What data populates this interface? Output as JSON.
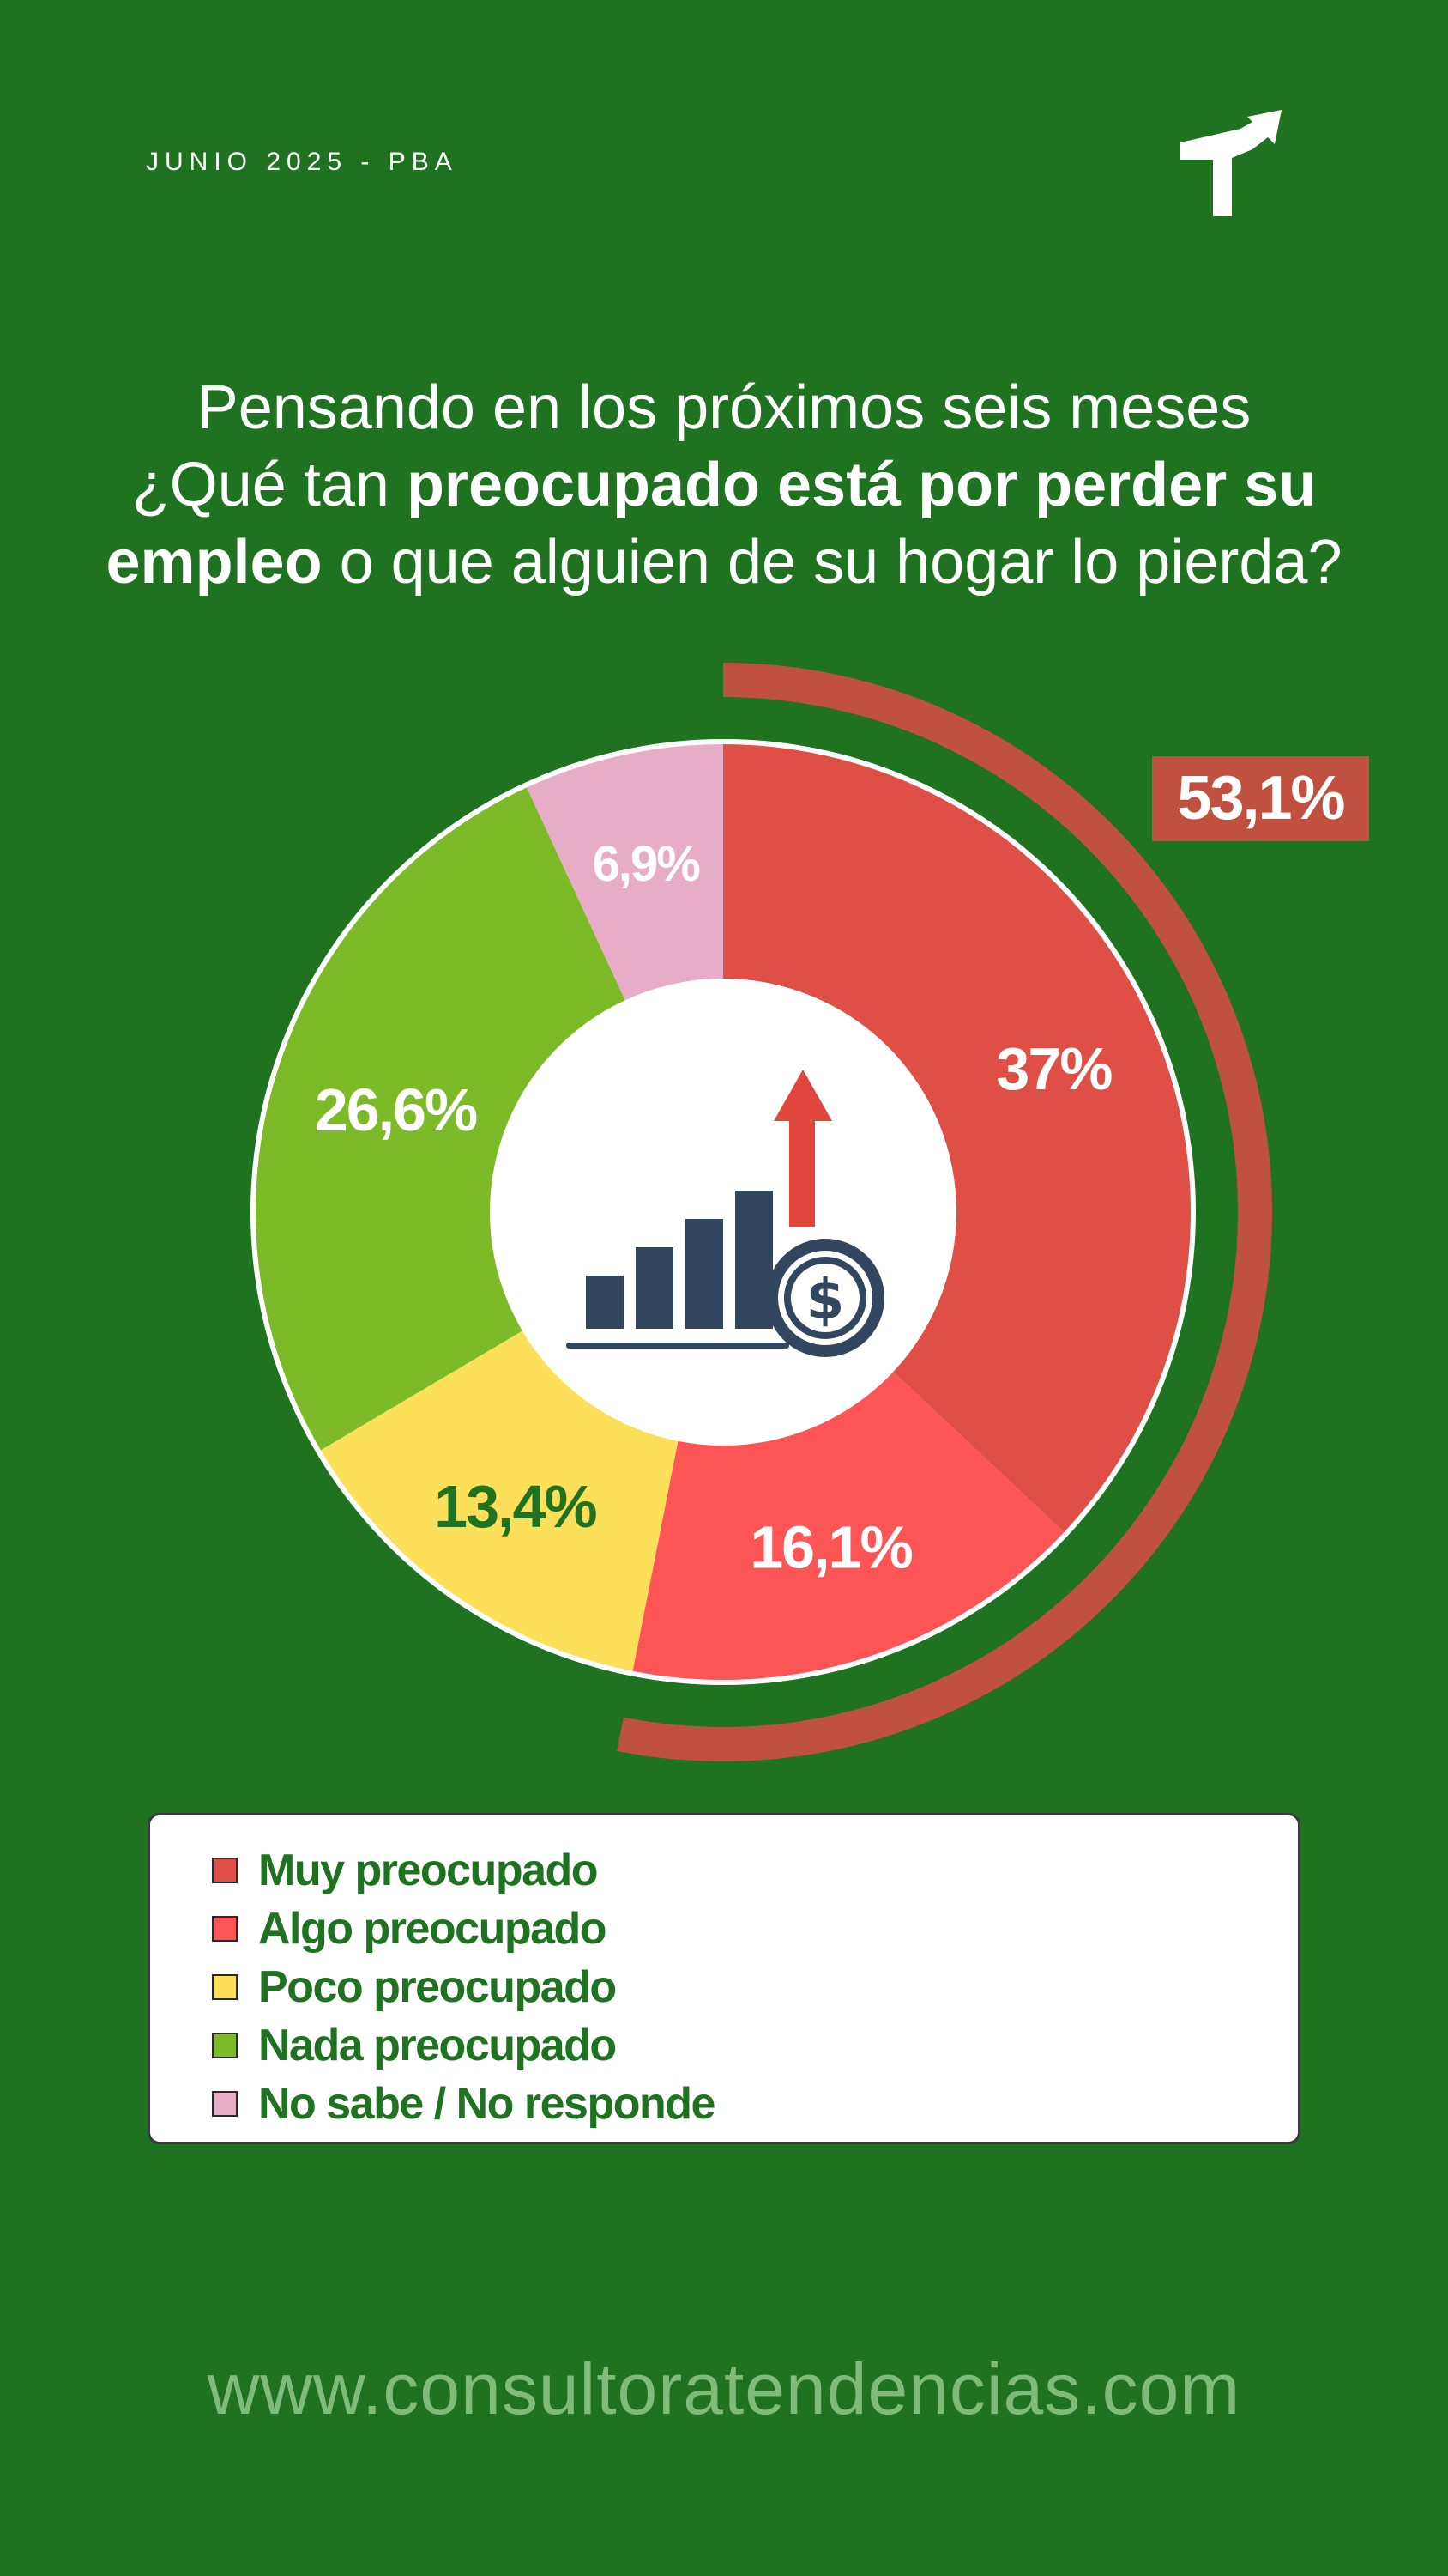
{
  "header": {
    "date_label": "JUNIO 2025 - PBA"
  },
  "question": {
    "line1": "Pensando en los próximos seis meses",
    "line2_plain": "¿Qué tan ",
    "line2_bold": "preocupado está por perder su",
    "line3_bold": "empleo",
    "line3_plain": " o que alguien de su hogar lo pierda?"
  },
  "chart_data": {
    "type": "pie",
    "variant": "donut",
    "title": "Pensando en los próximos seis meses ¿Qué tan preocupado está por perder su empleo o que alguien de su hogar lo pierda?",
    "categories": [
      "Muy preocupado",
      "Algo preocupado",
      "Poco preocupado",
      "Nada preocupado",
      "No sabe / No responde"
    ],
    "values": [
      37,
      16.1,
      13.4,
      26.6,
      6.9
    ],
    "labels": [
      "37%",
      "16,1%",
      "13,4%",
      "26,6%",
      "6,9%"
    ],
    "colors": [
      "#df4f46",
      "#fd5556",
      "#fde05a",
      "#7cba27",
      "#e8adc6"
    ],
    "label_colors": [
      "#ffffff",
      "#ffffff",
      "#1e7220",
      "#ffffff",
      "#ffffff"
    ],
    "highlight": {
      "value_label": "53,1%",
      "combined_value": 53.1,
      "color": "#c0503f"
    },
    "center_icon": "growth-chart-dollar-icon",
    "legend_position": "bottom"
  },
  "legend": {
    "items": [
      {
        "label": "Muy preocupado",
        "color": "#df4f46"
      },
      {
        "label": "Algo preocupado",
        "color": "#fd5556"
      },
      {
        "label": "Poco preocupado",
        "color": "#fde05a"
      },
      {
        "label": "Nada preocupado",
        "color": "#7cba27"
      },
      {
        "label": "No sabe / No responde",
        "color": "#e8adc6"
      }
    ]
  },
  "footer": {
    "website": "www.consultoratendencias.com"
  },
  "colors": {
    "background": "#1e7220",
    "text": "#ffffff",
    "website": "#7fbb7a"
  },
  "logo": {
    "icon": "arrow-t-logo-icon"
  }
}
